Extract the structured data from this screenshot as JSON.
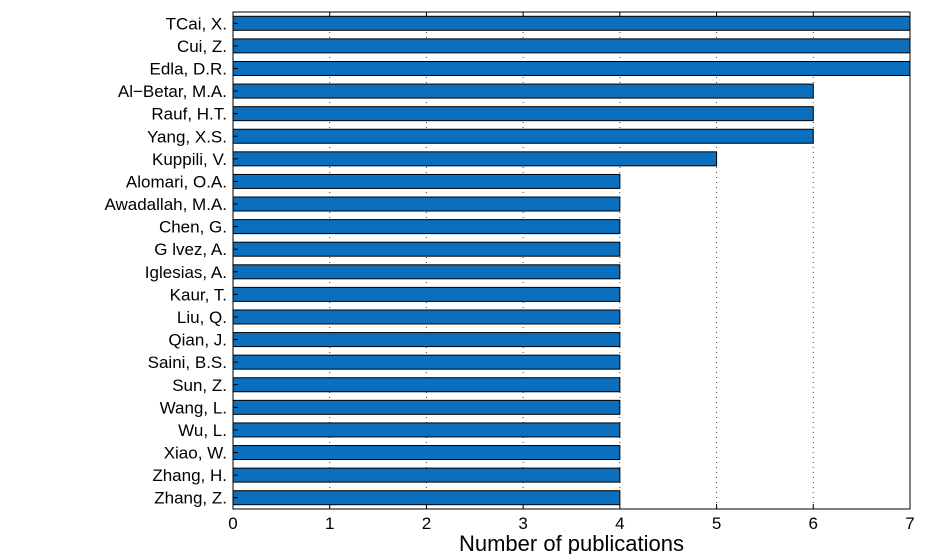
{
  "chart_data": {
    "type": "bar",
    "orientation": "horizontal",
    "categories": [
      "TCai, X.",
      "Cui, Z.",
      "Edla, D.R.",
      "Al−Betar, M.A.",
      "Rauf, H.T.",
      "Yang, X.S.",
      "Kuppili, V.",
      "Alomari, O.A.",
      "Awadallah, M.A.",
      "Chen, G.",
      "G lvez, A.",
      "Iglesias, A.",
      "Kaur, T.",
      "Liu, Q.",
      "Qian, J.",
      "Saini, B.S.",
      "Sun, Z.",
      "Wang, L.",
      "Wu, L.",
      "Xiao, W.",
      "Zhang, H.",
      "Zhang, Z."
    ],
    "values": [
      7,
      7,
      7,
      6,
      6,
      6,
      5,
      4,
      4,
      4,
      4,
      4,
      4,
      4,
      4,
      4,
      4,
      4,
      4,
      4,
      4,
      4
    ],
    "xlabel": "Number of publications",
    "ylabel": "",
    "title": "",
    "xlim": [
      0,
      7
    ],
    "xticks": [
      "0",
      "1",
      "2",
      "3",
      "4",
      "5",
      "6",
      "7"
    ],
    "grid": "vertical dotted",
    "bar_color": "#0b6fbd"
  }
}
